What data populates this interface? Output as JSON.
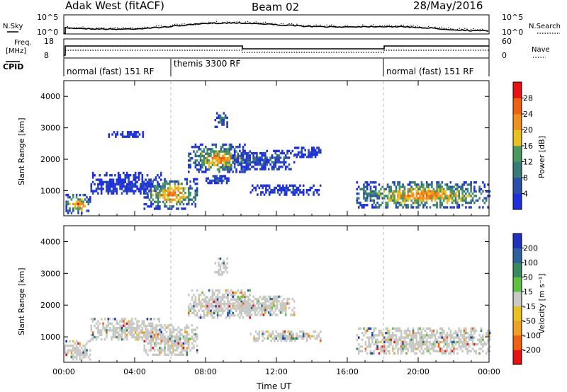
{
  "header": {
    "title": "Adak West (fitACF)",
    "beam": "Beam 02",
    "date": "28/May/2016"
  },
  "top_panels": {
    "nsky_label": "N.Sky",
    "nsky_ticks": [
      "10^5",
      "10^0"
    ],
    "nsearch_label": "N.Search",
    "nsearch_ticks": [
      "10^5",
      "10^0"
    ],
    "freq_label_1": "Freq.",
    "freq_label_2": "[MHz]",
    "freq_ticks": [
      "18",
      "8"
    ],
    "nave_label": "Nave",
    "nave_ticks": [
      "60",
      "0"
    ],
    "cpid_label": "CPID",
    "cpid_segments": [
      {
        "label": "normal (fast) 151 RF",
        "start_h": 0,
        "end_h": 6
      },
      {
        "label": "themis 3300 RF",
        "start_h": 6,
        "end_h": 18
      },
      {
        "label": "normal (fast) 151 RF",
        "start_h": 18,
        "end_h": 24
      }
    ]
  },
  "chart_data": [
    {
      "type": "heatmap",
      "name": "power",
      "ylabel": "Slant Range [km]",
      "yticks": [
        "4000",
        "3000",
        "2000",
        "1000"
      ],
      "ylim": [
        200,
        4500
      ],
      "xlim": [
        0,
        24
      ],
      "colorbar_label": "Power [dB]",
      "colorbar_ticks": [
        "28",
        "24",
        "20",
        "16",
        "12",
        "8",
        "4"
      ],
      "colors": [
        "#1f2fe0",
        "#2a4fa8",
        "#3a7a78",
        "#4a9a60",
        "#e8c020",
        "#f09020",
        "#f06010",
        "#e81010"
      ],
      "echo_regions": [
        {
          "t0": 0.0,
          "t1": 1.5,
          "r0": 300,
          "r1": 900,
          "level": 0.8
        },
        {
          "t0": 1.5,
          "t1": 5.5,
          "r0": 900,
          "r1": 1600,
          "level": 0.1
        },
        {
          "t0": 4.5,
          "t1": 7.5,
          "r0": 450,
          "r1": 1400,
          "level": 0.85
        },
        {
          "t0": 2.5,
          "t1": 4.5,
          "r0": 2700,
          "r1": 2900,
          "level": 0.1
        },
        {
          "t0": 7.0,
          "t1": 10.5,
          "r0": 1600,
          "r1": 2500,
          "level": 0.75
        },
        {
          "t0": 8.0,
          "t1": 9.5,
          "r0": 1250,
          "r1": 1500,
          "level": 0.2
        },
        {
          "t0": 8.5,
          "t1": 9.2,
          "r0": 3000,
          "r1": 3500,
          "level": 0.4
        },
        {
          "t0": 9.5,
          "t1": 13.0,
          "r0": 1700,
          "r1": 2300,
          "level": 0.25
        },
        {
          "t0": 10.5,
          "t1": 14.5,
          "r0": 900,
          "r1": 1200,
          "level": 0.1
        },
        {
          "t0": 13.0,
          "t1": 14.5,
          "r0": 2050,
          "r1": 2400,
          "level": 0.1
        },
        {
          "t0": 16.5,
          "t1": 24.0,
          "r0": 450,
          "r1": 1300,
          "level": 0.8
        }
      ]
    },
    {
      "type": "heatmap",
      "name": "velocity",
      "ylabel": "Slant Range [km]",
      "yticks": [
        "4000",
        "3000",
        "2000",
        "1000"
      ],
      "ylim": [
        200,
        4500
      ],
      "xlim": [
        0,
        24
      ],
      "xlabel": "Time UT",
      "xticks": [
        "00:00",
        "04:00",
        "08:00",
        "12:00",
        "16:00",
        "20:00",
        "00:00"
      ],
      "colorbar_label": "Velocity [m s⁻¹]",
      "colorbar_ticks": [
        "200",
        "100",
        "50",
        "15",
        "-15",
        "-50",
        "-100",
        "-200"
      ],
      "colors": [
        "#2030c0",
        "#2a60a0",
        "#3a8a60",
        "#60c040",
        "#c8c8c4",
        "#e8c020",
        "#f0a020",
        "#f06010",
        "#e81010"
      ],
      "echo_regions": [
        {
          "t0": 0.0,
          "t1": 1.5,
          "r0": 300,
          "r1": 900,
          "level": 0.5
        },
        {
          "t0": 1.5,
          "t1": 5.5,
          "r0": 900,
          "r1": 1600,
          "level": 0.5
        },
        {
          "t0": 4.5,
          "t1": 7.5,
          "r0": 450,
          "r1": 1400,
          "level": 0.5
        },
        {
          "t0": 7.0,
          "t1": 10.5,
          "r0": 1600,
          "r1": 2500,
          "level": 0.5
        },
        {
          "t0": 8.5,
          "t1": 9.2,
          "r0": 3000,
          "r1": 3500,
          "level": 0.5
        },
        {
          "t0": 9.5,
          "t1": 13.0,
          "r0": 1700,
          "r1": 2300,
          "level": 0.5
        },
        {
          "t0": 10.5,
          "t1": 14.5,
          "r0": 900,
          "r1": 1200,
          "level": 0.6
        },
        {
          "t0": 16.5,
          "t1": 24.0,
          "r0": 450,
          "r1": 1300,
          "level": 0.5
        }
      ]
    }
  ]
}
